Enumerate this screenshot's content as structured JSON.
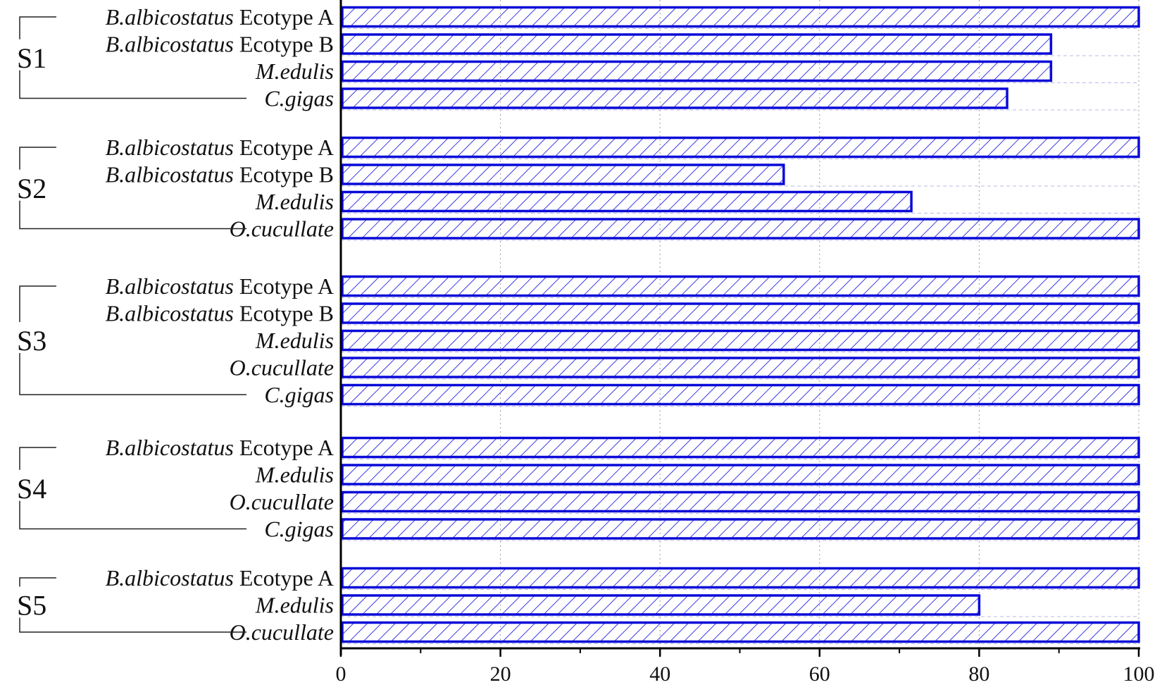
{
  "chart_data": {
    "type": "bar",
    "orientation": "horizontal",
    "title": "",
    "xlabel": "",
    "ylabel": "",
    "xlim": [
      0,
      100
    ],
    "x_ticks": [
      "0",
      "20",
      "40",
      "60",
      "80",
      "100"
    ],
    "grid": "vertical dotted lines at ticks",
    "bar_style": {
      "stroke": "#0a0ad8",
      "hatch": "diagonal",
      "fill": "#ffffff"
    },
    "groups": [
      {
        "label": "S1",
        "bars": [
          {
            "species": "B.albicostatus",
            "suffix": " Ecotype A",
            "value": 100
          },
          {
            "species": "B.albicostatus",
            "suffix": " Ecotype B",
            "value": 89
          },
          {
            "species": "M.edulis",
            "suffix": "",
            "value": 89
          },
          {
            "species": "C.gigas",
            "suffix": "",
            "value": 83.5
          }
        ]
      },
      {
        "label": "S2",
        "bars": [
          {
            "species": "B.albicostatus",
            "suffix": " Ecotype A",
            "value": 100
          },
          {
            "species": "B.albicostatus",
            "suffix": " Ecotype B",
            "value": 55.5
          },
          {
            "species": "M.edulis",
            "suffix": "",
            "value": 71.5
          },
          {
            "species": "O.cucullate",
            "suffix": "",
            "value": 100
          }
        ]
      },
      {
        "label": "S3",
        "bars": [
          {
            "species": "B.albicostatus",
            "suffix": " Ecotype A",
            "value": 100
          },
          {
            "species": "B.albicostatus",
            "suffix": " Ecotype B",
            "value": 100
          },
          {
            "species": "M.edulis",
            "suffix": "",
            "value": 100
          },
          {
            "species": "O.cucullate",
            "suffix": "",
            "value": 100
          },
          {
            "species": "C.gigas",
            "suffix": "",
            "value": 100
          }
        ]
      },
      {
        "label": "S4",
        "bars": [
          {
            "species": "B.albicostatus",
            "suffix": " Ecotype A",
            "value": 100
          },
          {
            "species": "M.edulis",
            "suffix": "",
            "value": 100
          },
          {
            "species": "O.cucullate",
            "suffix": "",
            "value": 100
          },
          {
            "species": "C.gigas",
            "suffix": "",
            "value": 100
          }
        ]
      },
      {
        "label": "S5",
        "bars": [
          {
            "species": "B.albicostatus",
            "suffix": " Ecotype A",
            "value": 100
          },
          {
            "species": "M.edulis",
            "suffix": "",
            "value": 80
          },
          {
            "species": "O.cucullate",
            "suffix": "",
            "value": 100
          }
        ]
      }
    ]
  }
}
